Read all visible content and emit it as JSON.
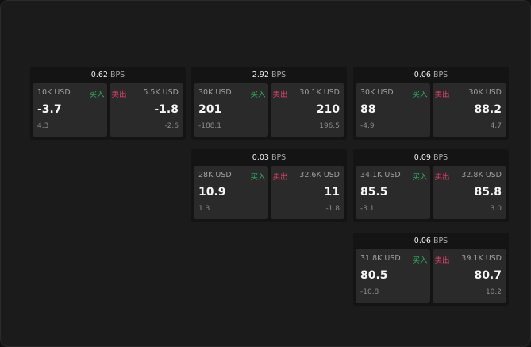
{
  "labels": {
    "buy": "买入",
    "sell": "卖出",
    "unit": "BPS"
  },
  "colors": {
    "buy": "#2fae63",
    "sell": "#e0406a"
  },
  "cards": [
    {
      "bps": "0.62",
      "buy": {
        "size": "10K USD",
        "price": "-3.7",
        "change": "4.3"
      },
      "sell": {
        "size": "5.5K USD",
        "price": "-1.8",
        "change": "-2.6"
      }
    },
    {
      "bps": "2.92",
      "buy": {
        "size": "30K USD",
        "price": "201",
        "change": "-188.1"
      },
      "sell": {
        "size": "30.1K USD",
        "price": "210",
        "change": "196.5"
      }
    },
    {
      "bps": "0.06",
      "buy": {
        "size": "30K USD",
        "price": "88",
        "change": "-4.9"
      },
      "sell": {
        "size": "30K USD",
        "price": "88.2",
        "change": "4.7"
      }
    },
    {
      "bps": "0.03",
      "buy": {
        "size": "28K USD",
        "price": "10.9",
        "change": "1.3"
      },
      "sell": {
        "size": "32.6K USD",
        "price": "11",
        "change": "-1.8"
      }
    },
    {
      "bps": "0.09",
      "buy": {
        "size": "34.1K USD",
        "price": "85.5",
        "change": "-3.1"
      },
      "sell": {
        "size": "32.8K USD",
        "price": "85.8",
        "change": "3.0"
      }
    },
    {
      "bps": "0.06",
      "buy": {
        "size": "31.8K USD",
        "price": "80.5",
        "change": "-10.8"
      },
      "sell": {
        "size": "39.1K USD",
        "price": "80.7",
        "change": "10.2"
      }
    }
  ]
}
